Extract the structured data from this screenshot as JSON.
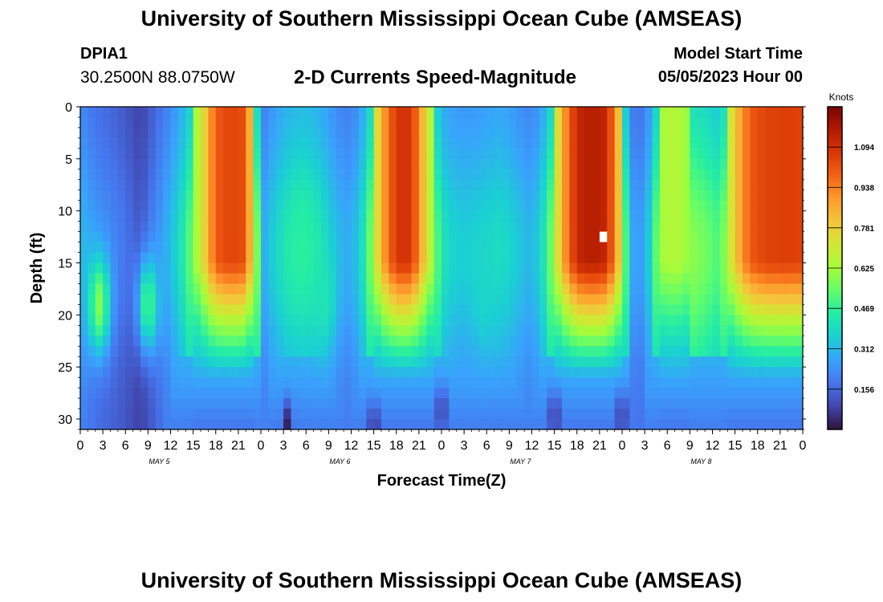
{
  "header": {
    "title_top": "University of Southern Mississippi Ocean Cube (AMSEAS)",
    "title_bottom": "University of Southern Mississippi Ocean Cube (AMSEAS)",
    "station_id": "DPIA1",
    "station_coords": "30.2500N  88.0750W",
    "chart_title": "2-D Currents Speed-Magnitude",
    "start_label": "Model Start Time",
    "start_value": "05/05/2023 Hour 00"
  },
  "chart_data": {
    "type": "heatmap",
    "title": "2-D Currents Speed-Magnitude",
    "xlabel": "Forecast Time(Z)",
    "ylabel": "Depth (ft)",
    "x_range_hours": [
      0,
      96
    ],
    "y_range_ft": [
      0,
      31
    ],
    "x_ticks": [
      "0",
      "3",
      "6",
      "9",
      "12",
      "15",
      "18",
      "21",
      "0",
      "3",
      "6",
      "9",
      "12",
      "15",
      "18",
      "21",
      "0",
      "3",
      "6",
      "9",
      "12",
      "15",
      "18",
      "21",
      "0",
      "3",
      "6",
      "9",
      "12",
      "15",
      "18",
      "21",
      "0"
    ],
    "y_ticks": [
      0,
      5,
      10,
      15,
      20,
      25,
      30
    ],
    "day_labels": [
      "MAY 5",
      "MAY 6",
      "MAY 7",
      "MAY 8"
    ],
    "colorbar": {
      "unit": "Knots",
      "min": 0.0,
      "max": 1.25,
      "ticks": [
        "0.156",
        "0.312",
        "0.469",
        "0.625",
        "0.781",
        "0.938",
        "1.094"
      ]
    },
    "colormap": [
      "#30123b",
      "#4145ab",
      "#4675ed",
      "#39a2fc",
      "#1bcfd4",
      "#24eca6",
      "#61fc6c",
      "#a4fc3b",
      "#d1e834",
      "#f3c63a",
      "#fe9b2d",
      "#f36315",
      "#d93806",
      "#b11901",
      "#7a0403"
    ],
    "surface_speed_by_hour": [
      [
        0,
        0.32
      ],
      [
        2,
        0.25
      ],
      [
        4,
        0.22
      ],
      [
        6,
        0.18
      ],
      [
        8,
        0.12
      ],
      [
        10,
        0.22
      ],
      [
        12,
        0.32
      ],
      [
        14,
        0.46
      ],
      [
        16,
        0.7
      ],
      [
        18,
        1.0
      ],
      [
        20,
        1.05
      ],
      [
        22,
        1.02
      ],
      [
        23,
        0.7
      ],
      [
        24.5,
        0.3
      ],
      [
        26,
        0.38
      ],
      [
        28,
        0.45
      ],
      [
        30,
        0.46
      ],
      [
        32,
        0.42
      ],
      [
        34,
        0.32
      ],
      [
        36,
        0.28
      ],
      [
        38,
        0.45
      ],
      [
        40,
        0.85
      ],
      [
        42,
        1.08
      ],
      [
        44,
        1.08
      ],
      [
        46,
        0.75
      ],
      [
        48,
        0.42
      ],
      [
        50,
        0.36
      ],
      [
        52,
        0.36
      ],
      [
        54,
        0.38
      ],
      [
        56,
        0.4
      ],
      [
        58,
        0.35
      ],
      [
        60,
        0.3
      ],
      [
        62,
        0.45
      ],
      [
        64,
        0.85
      ],
      [
        66,
        1.12
      ],
      [
        68,
        1.15
      ],
      [
        70,
        1.12
      ],
      [
        72,
        0.72
      ],
      [
        73,
        0.28
      ],
      [
        75,
        0.26
      ],
      [
        77,
        0.62
      ],
      [
        79,
        0.66
      ],
      [
        81,
        0.6
      ],
      [
        83,
        0.56
      ],
      [
        85,
        0.5
      ],
      [
        87,
        0.8
      ],
      [
        89,
        1.0
      ],
      [
        91,
        1.05
      ],
      [
        94,
        1.06
      ],
      [
        96,
        1.05
      ]
    ],
    "mid_depth_lobes_hour_ft_speed": [
      [
        2.5,
        19,
        0.58
      ],
      [
        9,
        19,
        0.5
      ],
      [
        29.5,
        12.5,
        0.45
      ],
      [
        32.5,
        18.5,
        0.42
      ],
      [
        53.5,
        18,
        0.38
      ]
    ],
    "deep_minima_hour_ft": [
      [
        48,
        29
      ],
      [
        63,
        29.5
      ],
      [
        72,
        29.5
      ],
      [
        27.5,
        30.5
      ],
      [
        39,
        30.5
      ]
    ],
    "missing_cell_hour_ft": [
      69,
      12
    ]
  }
}
